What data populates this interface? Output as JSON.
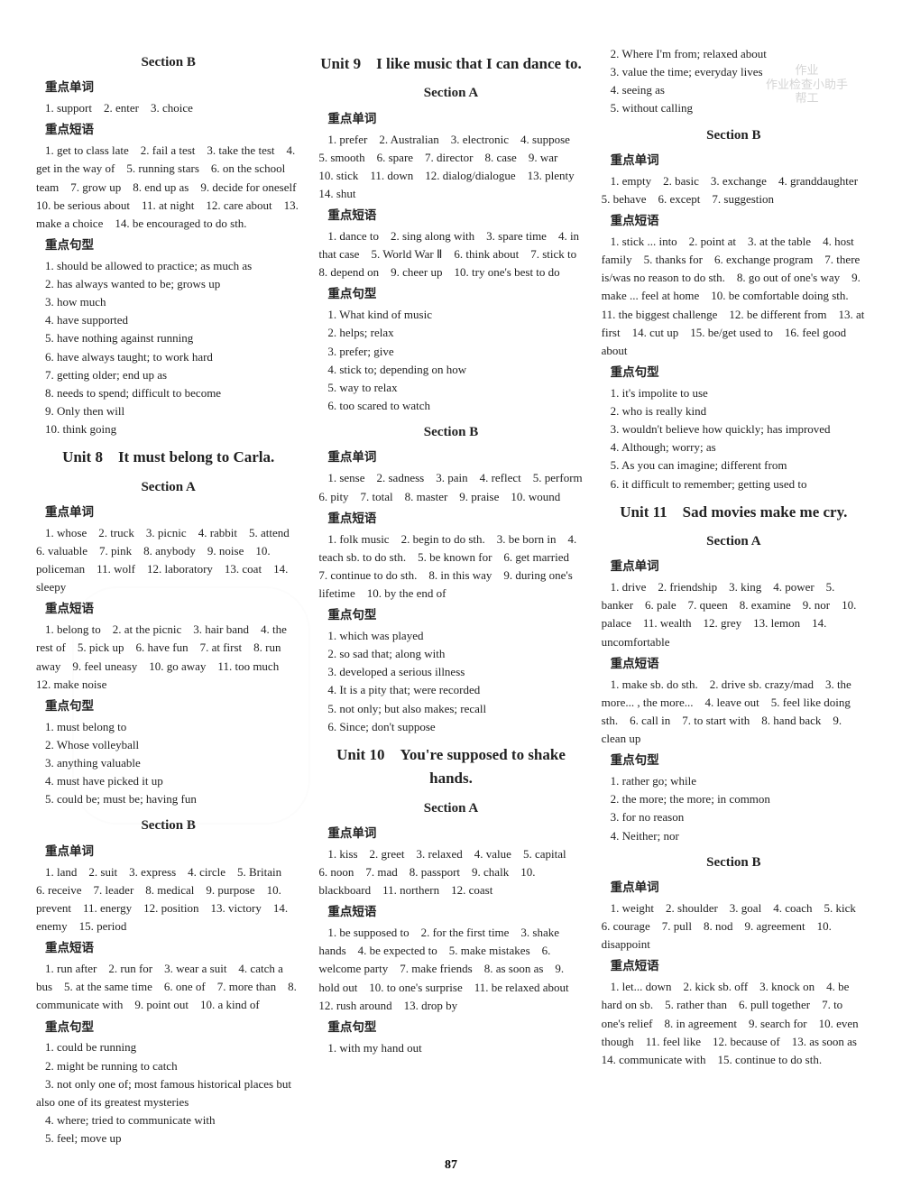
{
  "page_number": "87",
  "watermark": {
    "line1": "作业",
    "line2": "作业检查小助手",
    "line3": "帮工"
  },
  "col1": {
    "sectionB_title": "Section B",
    "h_danci": "重点单词",
    "sb_danci": "1. support　2. enter　3. choice",
    "h_duanyu": "重点短语",
    "sb_duanyu": "1. get to class late　2. fail a test　3. take the test　4. get in the way of　5. running stars　6. on the school team　7. grow up　8. end up as　9. decide for oneself　10. be serious about　11. at night　12. care about　13. make a choice　14. be encouraged to do sth.",
    "h_juxing": "重点句型",
    "sb_juxing_1": "1. should be allowed to practice; as much as",
    "sb_juxing_2": "2. has always wanted to be; grows up",
    "sb_juxing_3": "3. how much",
    "sb_juxing_4": "4. have supported",
    "sb_juxing_5": "5. have nothing against running",
    "sb_juxing_6": "6. have always taught; to work hard",
    "sb_juxing_7": "7. getting older; end up as",
    "sb_juxing_8": "8. needs to spend; difficult to become",
    "sb_juxing_9": "9. Only then will",
    "sb_juxing_10": "10. think going",
    "unit8_title": "Unit 8　It must belong to Carla.",
    "u8_sa_title": "Section A",
    "u8_h_danci": "重点单词",
    "u8_sa_danci": "1. whose　2. truck　3. picnic　4. rabbit　5. attend　6. valuable　7. pink　8. anybody　9. noise　10. policeman　11. wolf　12. laboratory　13. coat　14. sleepy",
    "u8_h_duanyu": "重点短语",
    "u8_sa_duanyu": "1. belong to　2. at the picnic　3. hair band　4. the rest of　5. pick up　6. have fun　7. at first　8. run away　9. feel uneasy　10. go away　11. too much　12. make noise",
    "u8_h_juxing": "重点句型",
    "u8_sa_juxing_1": "1. must belong to",
    "u8_sa_juxing_2": "2. Whose volleyball",
    "u8_sa_juxing_3": "3. anything valuable",
    "u8_sa_juxing_4": "4. must have picked it up",
    "u8_sa_juxing_5": "5. could be; must be; having fun",
    "u8_sb_title": "Section B",
    "u8_sb_h_danci": "重点单词",
    "u8_sb_danci": "1. land　2. suit　3. express　4. circle　5. Britain　6. receive　7. leader　8. medical　9. purpose　10. prevent　11. energy　12. position　13. victory　14. enemy　15. period",
    "u8_sb_h_duanyu": "重点短语",
    "u8_sb_duanyu": "1. run after　2. run for　3. wear a suit　4. catch a bus　5. at the same time　6. one of　7. more than　8. communicate with　9. point out　10. a kind of",
    "u8_sb_h_juxing": "重点句型",
    "u8_sb_juxing_1": "1. could be running",
    "u8_sb_juxing_2": "2. might be running to catch",
    "u8_sb_juxing_3": "3. not only one of; most famous historical places but also one of its greatest mysteries",
    "u8_sb_juxing_4": "4. where; tried to communicate with",
    "u8_sb_juxing_5": "5. feel; move up"
  },
  "col2": {
    "unit9_title": "Unit 9　I like music that I can dance to.",
    "u9_sa_title": "Section A",
    "u9_h_danci": "重点单词",
    "u9_sa_danci": "1. prefer　2. Australian　3. electronic　4. suppose　5. smooth　6. spare　7. director　8. case　9. war　10. stick　11. down　12. dialog/dialogue　13. plenty　14. shut",
    "u9_h_duanyu": "重点短语",
    "u9_sa_duanyu": "1. dance to　2. sing along with　3. spare time　4. in that case　5. World War Ⅱ　6. think about　7. stick to　8. depend on　9. cheer up　10. try one's best to do",
    "u9_h_juxing": "重点句型",
    "u9_sa_juxing_1": "1. What kind of music",
    "u9_sa_juxing_2": "2. helps; relax",
    "u9_sa_juxing_3": "3. prefer; give",
    "u9_sa_juxing_4": "4. stick to; depending on how",
    "u9_sa_juxing_5": "5. way to relax",
    "u9_sa_juxing_6": "6. too scared to watch",
    "u9_sb_title": "Section B",
    "u9_sb_h_danci": "重点单词",
    "u9_sb_danci": "1. sense　2. sadness　3. pain　4. reflect　5. perform　6. pity　7. total　8. master　9. praise　10. wound",
    "u9_sb_h_duanyu": "重点短语",
    "u9_sb_duanyu": "1. folk music　2. begin to do sth.　3. be born in　4. teach sb. to do sth.　5. be known for　6. get married　7. continue to do sth.　8. in this way　9. during one's lifetime　10. by the end of",
    "u9_sb_h_juxing": "重点句型",
    "u9_sb_juxing_1": "1. which was played",
    "u9_sb_juxing_2": "2. so sad that; along with",
    "u9_sb_juxing_3": "3. developed a serious illness",
    "u9_sb_juxing_4": "4. It is a pity that; were recorded",
    "u9_sb_juxing_5": "5. not only; but also makes; recall",
    "u9_sb_juxing_6": "6. Since; don't suppose",
    "unit10_title": "Unit 10　You're supposed to shake hands.",
    "u10_sa_title": "Section A",
    "u10_h_danci": "重点单词",
    "u10_sa_danci": "1. kiss　2. greet　3. relaxed　4. value　5. capital　6. noon　7. mad　8. passport　9. chalk　10. blackboard　11. northern　12. coast",
    "u10_h_duanyu": "重点短语",
    "u10_sa_duanyu": "1. be supposed to　2. for the first time　3. shake hands　4. be expected to　5. make mistakes　6. welcome party　7. make friends　8. as soon as　9. hold out　10. to one's surprise　11. be relaxed about　12. rush around　13. drop by",
    "u10_h_juxing": "重点句型",
    "u10_sa_juxing_1": "1. with my hand out"
  },
  "col3": {
    "u10_sa_juxing_2": "2. Where I'm from; relaxed about",
    "u10_sa_juxing_3": "3. value the time; everyday lives",
    "u10_sa_juxing_4": "4. seeing as",
    "u10_sa_juxing_5": "5. without calling",
    "u10_sb_title": "Section B",
    "u10_sb_h_danci": "重点单词",
    "u10_sb_danci": "1. empty　2. basic　3. exchange　4. granddaughter　5. behave　6. except　7. suggestion",
    "u10_sb_h_duanyu": "重点短语",
    "u10_sb_duanyu": "1. stick ... into　2. point at　3. at the table　4. host family　5. thanks for　6. exchange program　7. there is/was no reason to do sth.　8. go out of one's way　9. make ... feel at home　10. be comfortable doing sth.　11. the biggest challenge　12. be different from　13. at first　14. cut up　15. be/get used to　16. feel good about",
    "u10_sb_h_juxing": "重点句型",
    "u10_sb_juxing_1": "1. it's impolite to use",
    "u10_sb_juxing_2": "2. who is really kind",
    "u10_sb_juxing_3": "3. wouldn't believe how quickly; has improved",
    "u10_sb_juxing_4": "4. Although; worry; as",
    "u10_sb_juxing_5": "5. As you can imagine; different from",
    "u10_sb_juxing_6": "6. it difficult to remember; getting used to",
    "unit11_title": "Unit 11　Sad movies make me cry.",
    "u11_sa_title": "Section A",
    "u11_h_danci": "重点单词",
    "u11_sa_danci": "1. drive　2. friendship　3. king　4. power　5. banker　6. pale　7. queen　8. examine　9. nor　10. palace　11. wealth　12. grey　13. lemon　14. uncomfortable",
    "u11_h_duanyu": "重点短语",
    "u11_sa_duanyu": "1. make sb. do sth.　2. drive sb. crazy/mad　3. the more... , the more...　4. leave out　5. feel like doing sth.　6. call in　7. to start with　8. hand back　9. clean up",
    "u11_h_juxing": "重点句型",
    "u11_sa_juxing_1": "1. rather go; while",
    "u11_sa_juxing_2": "2. the more; the more; in common",
    "u11_sa_juxing_3": "3. for no reason",
    "u11_sa_juxing_4": "4. Neither; nor",
    "u11_sb_title": "Section B",
    "u11_sb_h_danci": "重点单词",
    "u11_sb_danci": "1. weight　2. shoulder　3. goal　4. coach　5. kick　6. courage　7. pull　8. nod　9. agreement　10. disappoint",
    "u11_sb_h_duanyu": "重点短语",
    "u11_sb_duanyu": "1. let... down　2. kick sb. off　3. knock on　4. be hard on sb.　5. rather than　6. pull together　7. to one's relief　8. in agreement　9. search for　10. even though　11. feel like　12. because of　13. as soon as　14. communicate with　15. continue to do sth."
  }
}
